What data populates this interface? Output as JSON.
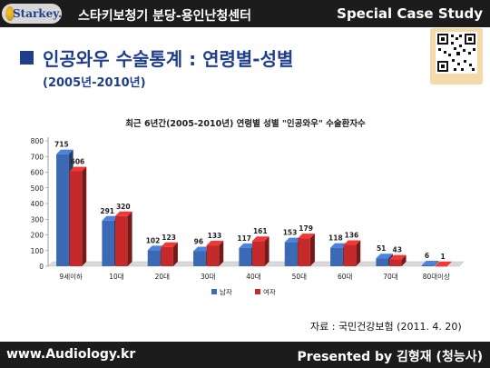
{
  "header": {
    "logo_text": "Starkey.",
    "center_title": "스타키보청기 분당-용인난청센터",
    "right_title": "Special Case Study"
  },
  "slide": {
    "heading": "인공와우 수술통계 : 연령별-성별",
    "subheading": "(2005년-2010년)"
  },
  "source_note": "자료 : 국민건강보험 (2011. 4. 20)",
  "footer": {
    "website": "www.Audiology.kr",
    "presenter": "Presented by 김형재 (청능사)"
  },
  "colors": {
    "male": "#3c69b3",
    "female": "#c52a2a",
    "accent": "#1f3f8c",
    "bar_dark": "#1c1c1c"
  },
  "chart_data": {
    "type": "bar",
    "title": "최근 6년간(2005-2010년) 연령별 성별 \"인공와우\" 수술환자수",
    "categories": [
      "9세이하",
      "10대",
      "20대",
      "30대",
      "40대",
      "50대",
      "60대",
      "70대",
      "80대이상"
    ],
    "series": [
      {
        "name": "남자",
        "color": "#3c69b3",
        "values": [
          715,
          291,
          102,
          96,
          117,
          153,
          118,
          51,
          6
        ]
      },
      {
        "name": "여자",
        "color": "#c52a2a",
        "values": [
          606,
          320,
          123,
          133,
          161,
          179,
          136,
          43,
          1
        ]
      }
    ],
    "ylim": [
      0,
      800
    ],
    "yticks": [
      0,
      100,
      200,
      300,
      400,
      500,
      600,
      700,
      800
    ],
    "xlabel": "",
    "ylabel": "",
    "legend_position": "bottom-center",
    "grid": false,
    "data_labels": true,
    "bar_style": "3d"
  }
}
